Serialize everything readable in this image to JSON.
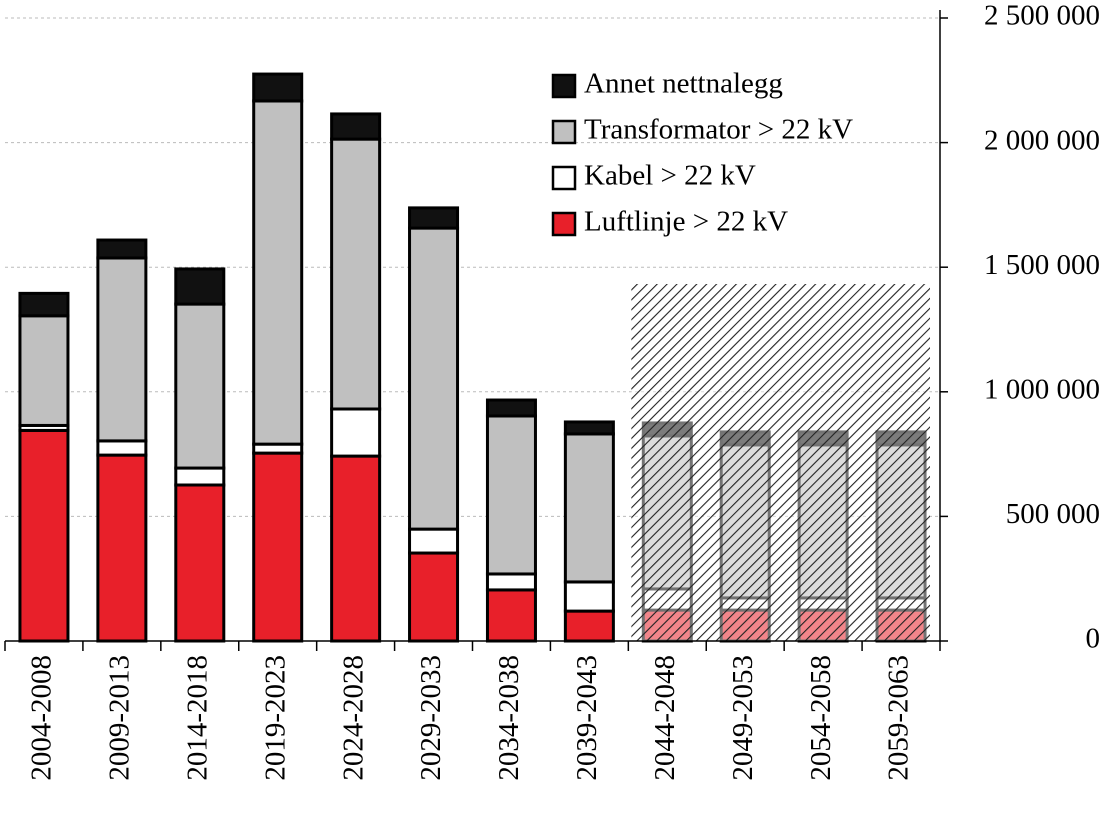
{
  "chart_data": {
    "type": "stacked_bar",
    "categories": [
      "2004-2008",
      "2009-2013",
      "2014-2018",
      "2019-2023",
      "2024-2028",
      "2029-2033",
      "2034-2038",
      "2039-2043",
      "2044-2048",
      "2049-2053",
      "2054-2058",
      "2059-2063"
    ],
    "series": [
      {
        "name": "Luftlinje > 22 kV",
        "color": "#e8202a",
        "values": [
          845000,
          746000,
          626000,
          754000,
          742000,
          353000,
          205000,
          120000,
          124000,
          124000,
          124000,
          124000
        ]
      },
      {
        "name": "Kabel > 22 kV",
        "color": "#ffffff",
        "values": [
          20000,
          57000,
          68000,
          36000,
          189000,
          96000,
          64000,
          117000,
          85000,
          49000,
          49000,
          49000
        ]
      },
      {
        "name": "Transformator > 22 kV",
        "color": "#c0c0c0",
        "values": [
          440000,
          734000,
          658000,
          1377000,
          1083000,
          1208000,
          634000,
          594000,
          614000,
          614000,
          614000,
          614000
        ]
      },
      {
        "name": "Annet nettnalegg",
        "color": "#111111",
        "values": [
          90000,
          72000,
          141000,
          108000,
          101000,
          81000,
          64000,
          48000,
          52000,
          52000,
          52000,
          52000
        ]
      }
    ],
    "ylim": [
      0,
      2500000
    ],
    "yticks": [
      0,
      {
        "value": 500000,
        "label": "500 000"
      },
      {
        "value": 1000000,
        "label": "1 000 000"
      },
      {
        "value": 1500000,
        "label": "1 500 000"
      },
      {
        "value": 2000000,
        "label": "2 000 000"
      },
      {
        "value": 2500000,
        "label": "2 500 000"
      }
    ],
    "grid": true
  }
}
